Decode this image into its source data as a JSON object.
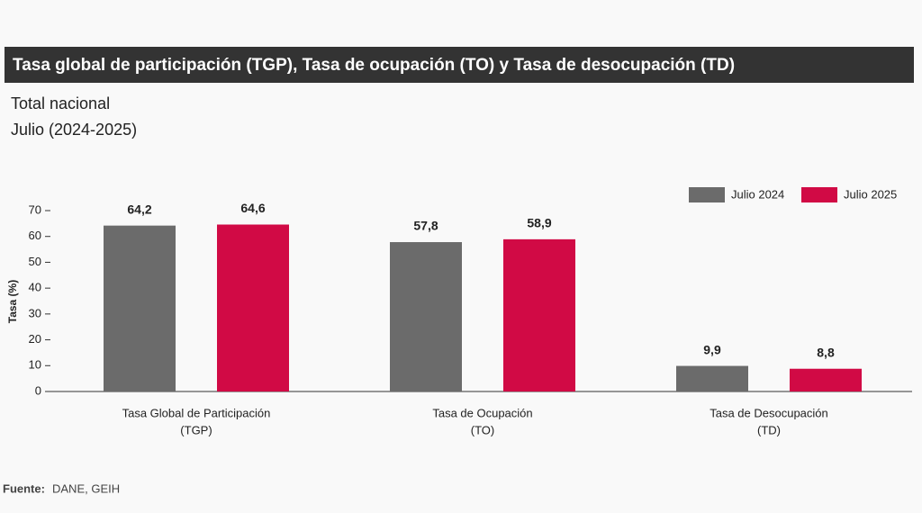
{
  "chart_data": {
    "type": "bar",
    "title": "Tasa global de participación (TGP), Tasa de ocupación (TO) y Tasa de desocupación (TD)",
    "subtitle": [
      "Total nacional",
      "Julio (2024-2025)"
    ],
    "ylabel": "Tasa (%)",
    "categories": [
      [
        "Tasa Global de Participación",
        "(TGP)"
      ],
      [
        "Tasa de Ocupación",
        "(TO)"
      ],
      [
        "Tasa de Desocupación",
        "(TD)"
      ]
    ],
    "series": [
      {
        "name": "Julio 2024",
        "color": "#6b6b6b",
        "values": [
          64.2,
          57.8,
          9.9
        ],
        "value_labels": [
          "64,2",
          "57,8",
          "9,9"
        ]
      },
      {
        "name": "Julio 2025",
        "color": "#d10a45",
        "values": [
          64.6,
          58.9,
          8.8
        ],
        "value_labels": [
          "64,6",
          "58,9",
          "8,8"
        ]
      }
    ],
    "ylim": [
      0,
      70
    ],
    "yticks": [
      0,
      10,
      20,
      30,
      40,
      50,
      60,
      70
    ],
    "legend": "top-right",
    "source": {
      "label": "Fuente:",
      "text": "DANE, GEIH"
    }
  }
}
